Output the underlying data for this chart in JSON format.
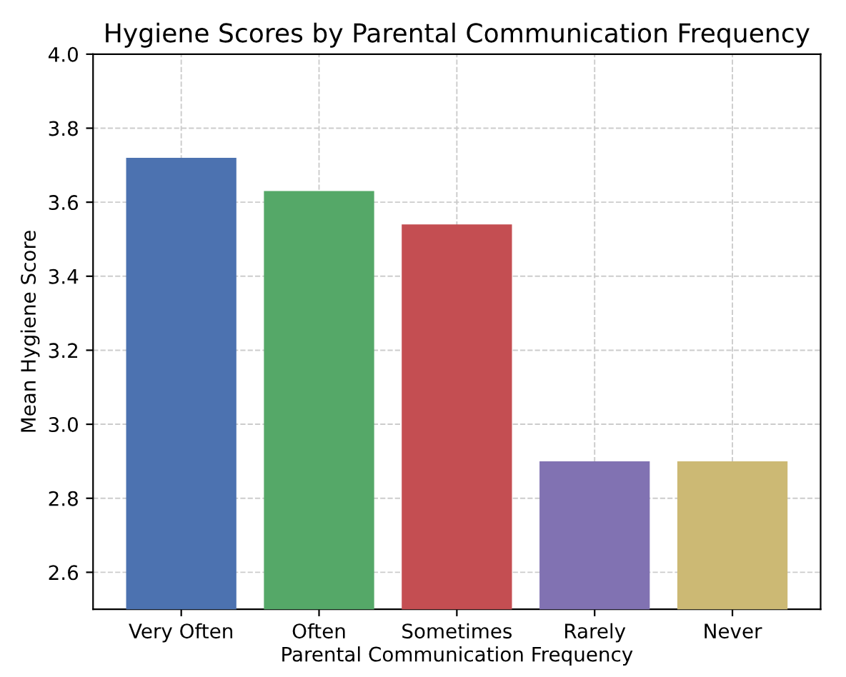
{
  "chart_data": {
    "type": "bar",
    "title": "Hygiene Scores by Parental Communication Frequency",
    "xlabel": "Parental Communication Frequency",
    "ylabel": "Mean Hygiene Score",
    "categories": [
      "Very Often",
      "Often",
      "Sometimes",
      "Rarely",
      "Never"
    ],
    "values": [
      3.72,
      3.63,
      3.54,
      2.9,
      2.9
    ],
    "colors": [
      "#4c72b0",
      "#55a868",
      "#c44e52",
      "#8172b2",
      "#ccb974"
    ],
    "ylim": [
      2.5,
      4.0
    ],
    "yticks": [
      {
        "value": 2.6,
        "label": "2.6"
      },
      {
        "value": 2.8,
        "label": "2.8"
      },
      {
        "value": 3,
        "label": "3.0"
      },
      {
        "value": 3.2,
        "label": "3.2"
      },
      {
        "value": 3.4,
        "label": "3.4"
      },
      {
        "value": 3.6,
        "label": "3.6"
      },
      {
        "value": 3.8,
        "label": "3.8"
      },
      {
        "value": 4,
        "label": "4.0"
      }
    ],
    "grid": true
  }
}
